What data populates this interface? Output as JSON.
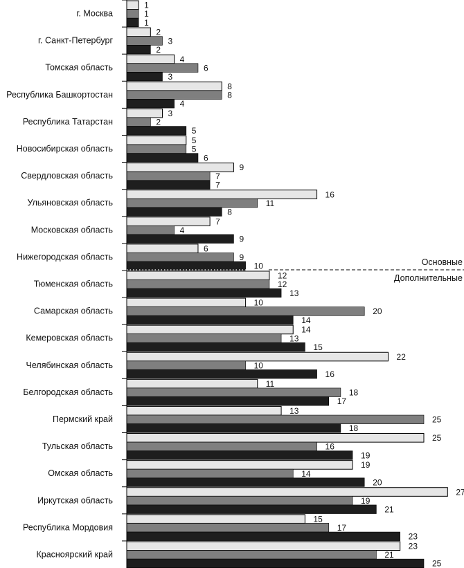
{
  "chart_data": {
    "type": "bar",
    "orientation": "horizontal",
    "categories": [
      "г. Москва",
      "г. Санкт-Петербург",
      "Томская область",
      "Республика Башкортостан",
      "Республика Татарстан",
      "Новосибирская область",
      "Свердловская область",
      "Ульяновская область",
      "Московская область",
      "Нижегородская область",
      "Тюменская область",
      "Самарская область",
      "Кемеровская область",
      "Челябинская область",
      "Белгородская область",
      "Пермский край",
      "Тульская область",
      "Омская область",
      "Иркутская область",
      "Республика Мордовия",
      "Красноярский край"
    ],
    "series": [
      {
        "color": "#e6e6e6",
        "values": [
          1,
          2,
          4,
          8,
          3,
          5,
          9,
          16,
          7,
          6,
          12,
          10,
          14,
          22,
          11,
          13,
          25,
          19,
          27,
          15,
          23
        ]
      },
      {
        "color": "#7f7f7f",
        "values": [
          1,
          3,
          6,
          8,
          2,
          5,
          7,
          11,
          4,
          9,
          12,
          20,
          13,
          10,
          18,
          25,
          16,
          14,
          19,
          17,
          21
        ]
      },
      {
        "color": "#1e1e1e",
        "values": [
          1,
          2,
          3,
          4,
          5,
          6,
          7,
          8,
          9,
          10,
          13,
          14,
          15,
          16,
          17,
          18,
          19,
          20,
          21,
          23,
          25
        ]
      }
    ],
    "xlim": [
      0,
      27
    ],
    "grid": false,
    "data_labels": true,
    "annotations": {
      "divider_after_index": 9,
      "above_label": "Основные",
      "below_label": "Дополнительные"
    }
  }
}
